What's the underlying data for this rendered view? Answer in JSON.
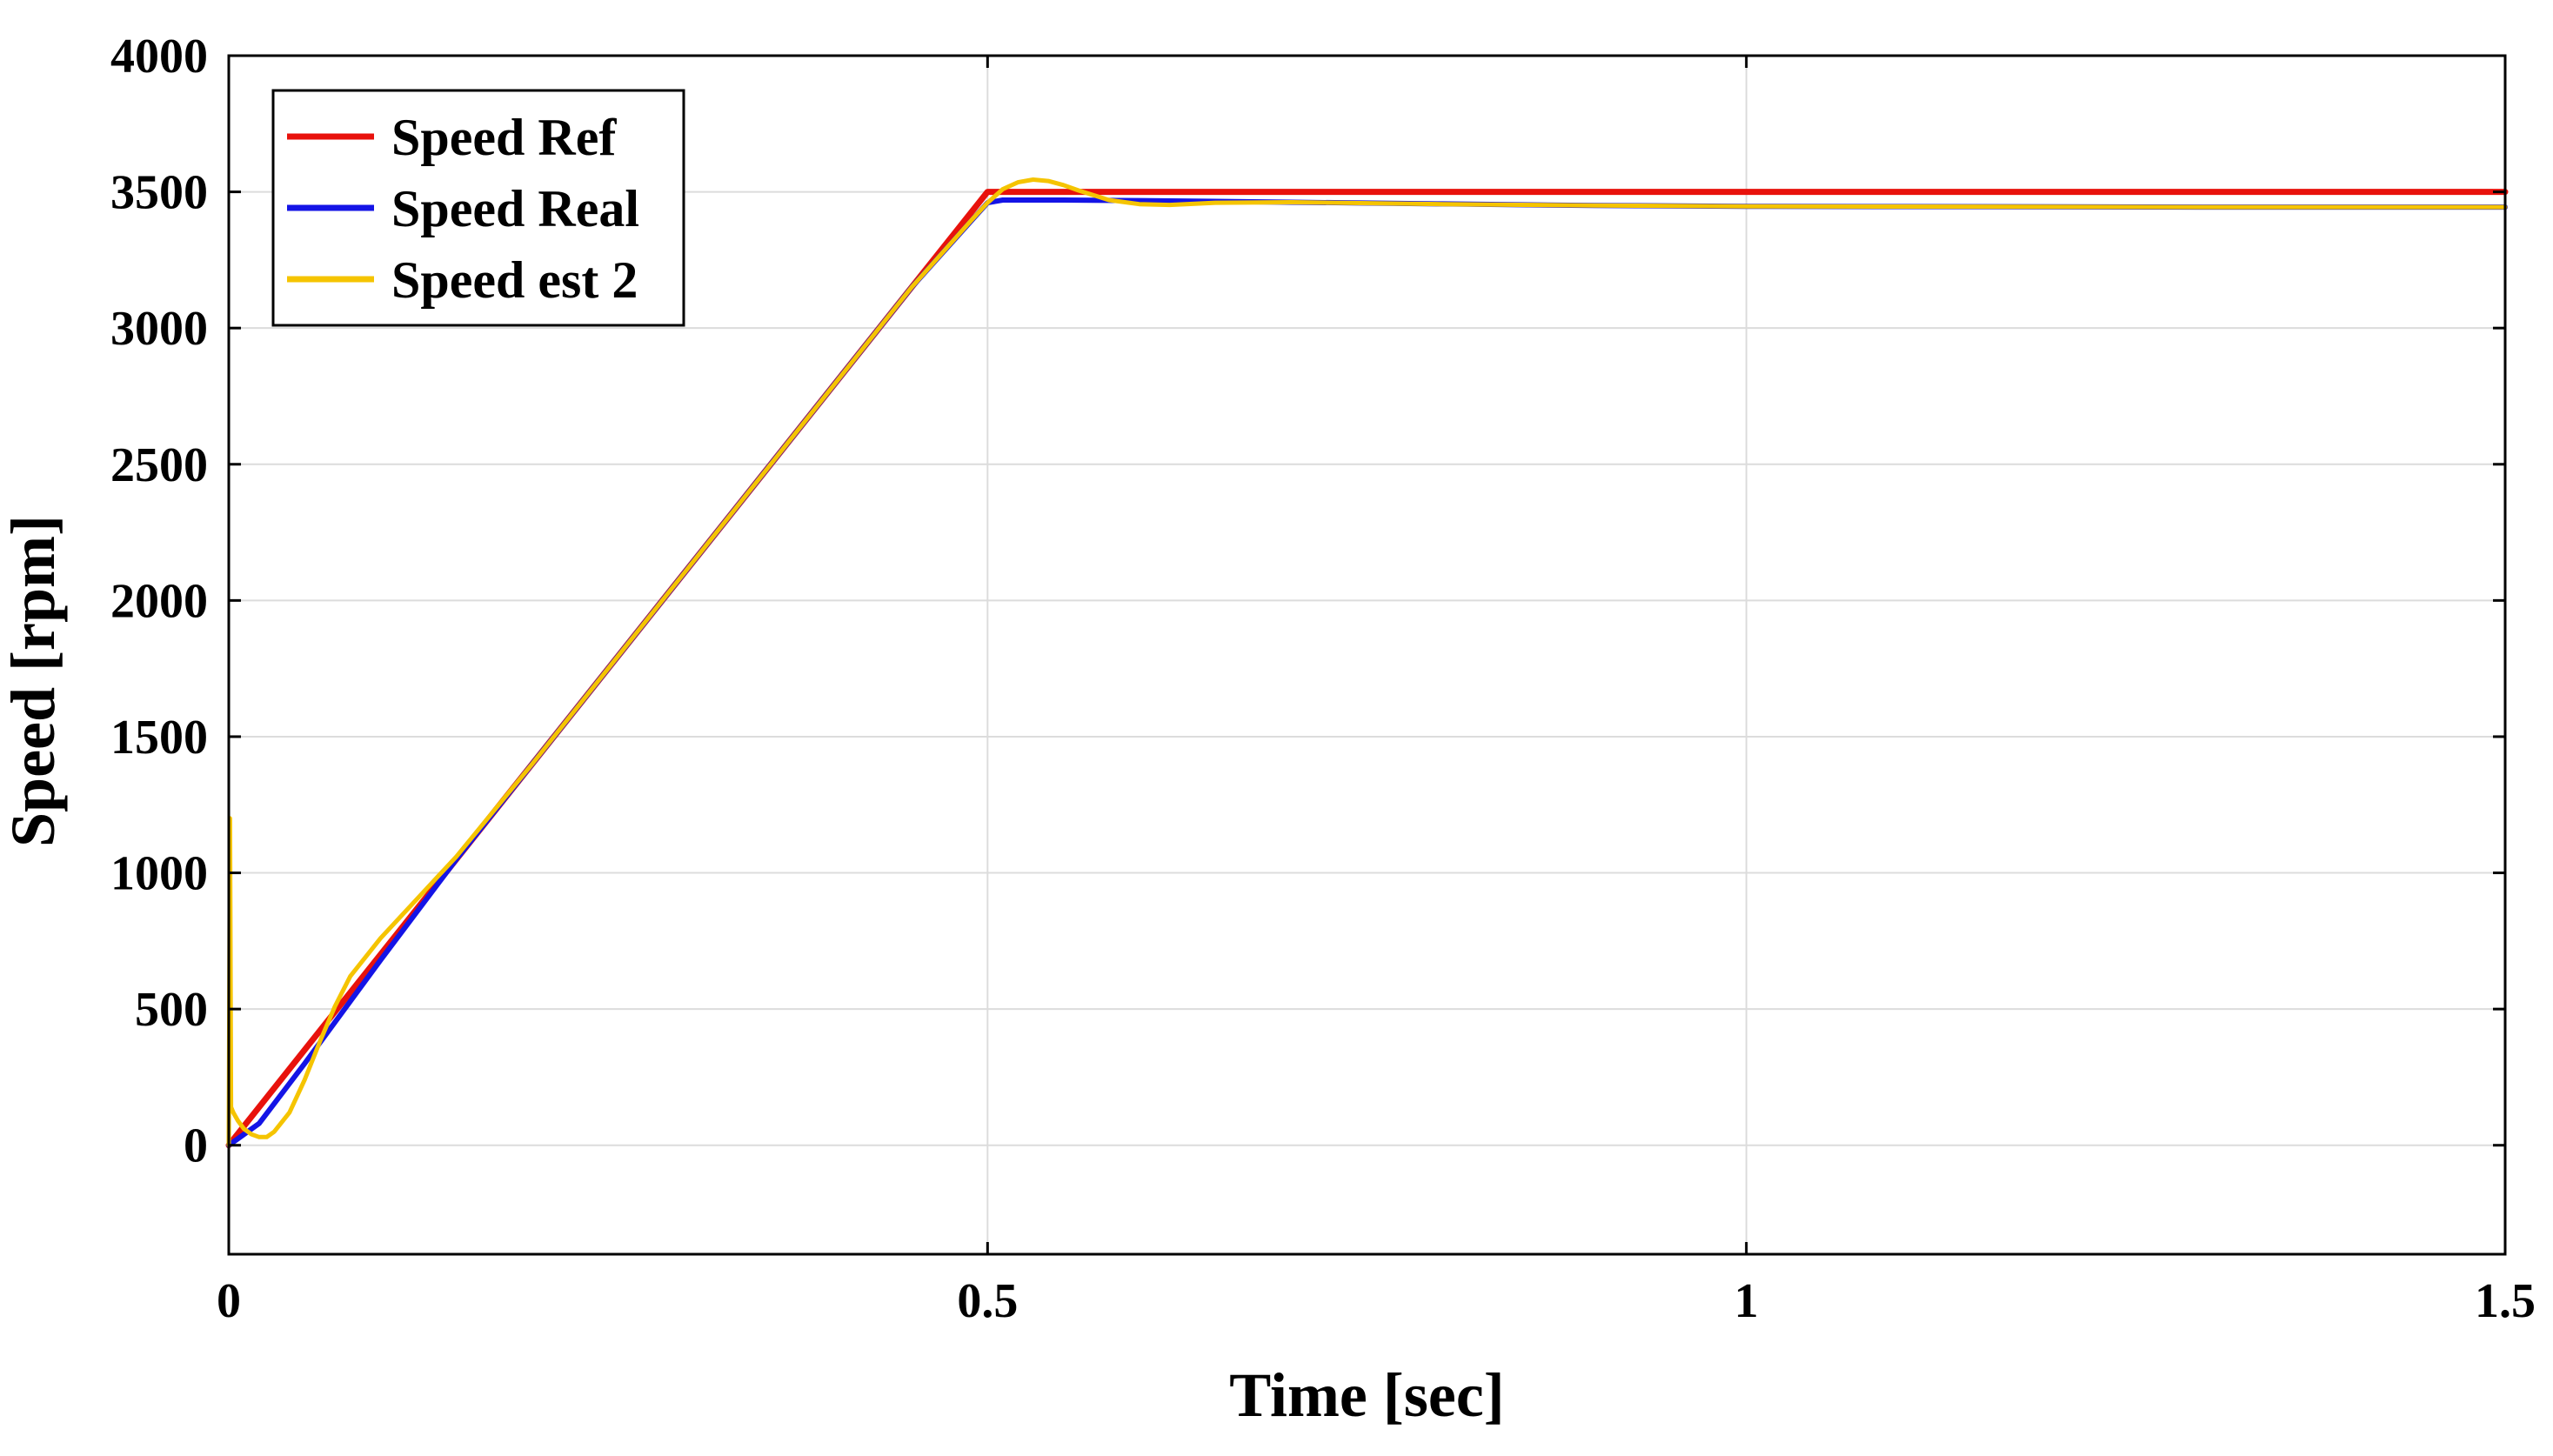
{
  "chart_data": {
    "type": "line",
    "xlabel": "Time [sec]",
    "ylabel": "Speed [rpm]",
    "xlim": [
      0,
      1.5
    ],
    "ylim": [
      -400,
      4000
    ],
    "xticks": [
      0,
      0.5,
      1,
      1.5
    ],
    "xtick_labels": [
      "0",
      "0.5",
      "1",
      "1.5"
    ],
    "yticks": [
      0,
      500,
      1000,
      1500,
      2000,
      2500,
      3000,
      3500,
      4000
    ],
    "ytick_labels": [
      "0",
      "500",
      "1000",
      "1500",
      "2000",
      "2500",
      "3000",
      "3500",
      "4000"
    ],
    "grid": true,
    "legend_position": "top-left",
    "series": [
      {
        "name": "Speed Ref",
        "color": "#e8120c",
        "x": [
          0,
          0.5,
          0.6,
          0.8,
          1.0,
          1.2,
          1.5
        ],
        "y": [
          0,
          3500,
          3500,
          3500,
          3500,
          3500,
          3500
        ]
      },
      {
        "name": "Speed Real",
        "color": "#1414e6",
        "x": [
          0,
          0.005,
          0.02,
          0.05,
          0.1,
          0.15,
          0.2,
          0.3,
          0.4,
          0.45,
          0.5,
          0.51,
          0.55,
          0.6,
          0.7,
          0.8,
          0.9,
          1.0,
          1.1,
          1.2,
          1.3,
          1.4,
          1.5
        ],
        "y": [
          0,
          20,
          80,
          300,
          680,
          1050,
          1400,
          2100,
          2800,
          3150,
          3460,
          3470,
          3470,
          3468,
          3462,
          3456,
          3450,
          3447,
          3446,
          3445,
          3444,
          3444,
          3444
        ]
      },
      {
        "name": "Speed est 2",
        "color": "#f5c400",
        "x": [
          0,
          0.0008,
          0.0015,
          0.003,
          0.006,
          0.01,
          0.015,
          0.02,
          0.025,
          0.03,
          0.04,
          0.05,
          0.06,
          0.07,
          0.08,
          0.1,
          0.15,
          0.2,
          0.3,
          0.4,
          0.45,
          0.49,
          0.5,
          0.51,
          0.52,
          0.53,
          0.54,
          0.55,
          0.56,
          0.58,
          0.6,
          0.62,
          0.65,
          0.7,
          0.8,
          0.9,
          1.0,
          1.1,
          1.2,
          1.3,
          1.4,
          1.5
        ],
        "y": [
          0,
          1200,
          140,
          120,
          90,
          60,
          40,
          30,
          30,
          50,
          120,
          240,
          380,
          510,
          620,
          760,
          1060,
          1400,
          2100,
          2800,
          3150,
          3400,
          3460,
          3510,
          3535,
          3545,
          3540,
          3525,
          3505,
          3470,
          3455,
          3452,
          3460,
          3462,
          3455,
          3450,
          3447,
          3446,
          3445,
          3444,
          3444,
          3444
        ]
      }
    ]
  }
}
